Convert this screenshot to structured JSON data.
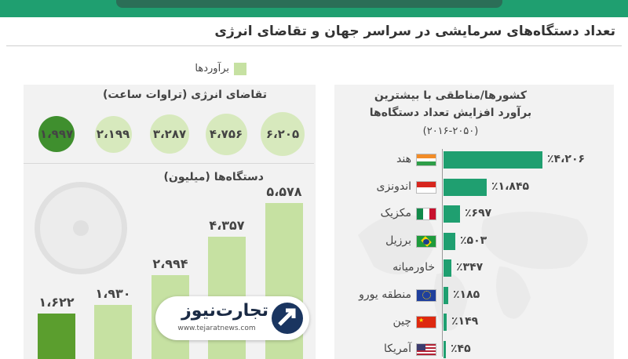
{
  "header": {
    "subtitle": "تعداد دستگاه‌های سرمایشی در سراسر جهان و تقاضای انرژی"
  },
  "legend": {
    "label": "برآوردها",
    "color": "#c6e1a2"
  },
  "energy": {
    "title": "تقاضای انرژی (تراوات ساعت)"
  },
  "devices": {
    "title": "دستگاه‌ها (میلیون)"
  },
  "right_panel": {
    "title_line1": "کشورها/مناطقی با بیشترین",
    "title_line2": "برآورد افزایش تعداد دستگاه‌ها",
    "period": "(۲۰۱۶-۲۰۵۰)"
  },
  "logo": {
    "brand": "تجارت‌نیوز",
    "url": "www.tejaratnews.com"
  },
  "colors": {
    "accent": "#1f9f70",
    "actual": "#3f8f2e",
    "estimate": "#d7e9bd"
  },
  "chart_data": [
    {
      "type": "bubble",
      "title": "تقاضای انرژی (تراوات ساعت)",
      "values": [
        1997,
        2199,
        3287,
        4756,
        6205
      ],
      "labels": [
        "۱،۹۹۷",
        "۲،۱۹۹",
        "۳،۲۸۷",
        "۴،۷۵۶",
        "۶،۲۰۵"
      ],
      "estimated": [
        false,
        true,
        true,
        true,
        true
      ]
    },
    {
      "type": "bar",
      "title": "دستگاه‌ها (میلیون)",
      "values": [
        1622,
        1930,
        2994,
        4357,
        5578
      ],
      "labels": [
        "۱،۶۲۲",
        "۱،۹۳۰",
        "۲،۹۹۴",
        "۴،۳۵۷",
        "۵،۵۷۸"
      ],
      "estimated": [
        false,
        true,
        true,
        true,
        true
      ],
      "ylim": [
        0,
        5600
      ]
    },
    {
      "type": "bar",
      "orientation": "horizontal",
      "title": "کشورها/مناطقی با بیشترین برآورد افزایش تعداد دستگاه‌ها (۲۰۱۶-۲۰۵۰)",
      "categories": [
        "هند",
        "اندونزی",
        "مکزیک",
        "برزیل",
        "خاورمیانه",
        "منطقه یورو",
        "چین",
        "آمریکا"
      ],
      "values": [
        4206,
        1845,
        697,
        503,
        347,
        185,
        149,
        45
      ],
      "labels": [
        "٪۴،۲۰۶",
        "٪۱،۸۴۵",
        "٪۶۹۷",
        "٪۵۰۳",
        "٪۳۴۷",
        "٪۱۸۵",
        "٪۱۴۹",
        "٪۴۵"
      ],
      "flags": [
        "india-flag-icon",
        "indonesia-flag-icon",
        "mexico-flag-icon",
        "brazil-flag-icon",
        "",
        "eu-flag-icon",
        "china-flag-icon",
        "usa-flag-icon"
      ]
    }
  ]
}
